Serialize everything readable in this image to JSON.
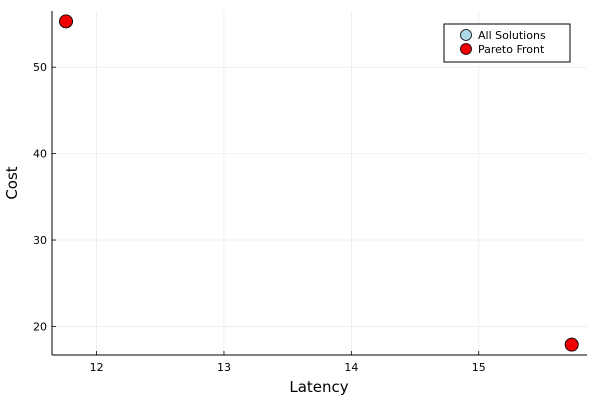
{
  "chart_data": {
    "type": "scatter",
    "title": "",
    "xlabel": "Latency",
    "ylabel": "Cost",
    "xlim": [
      11.65,
      15.85
    ],
    "ylim": [
      16.7,
      56.5
    ],
    "xticks": [
      12,
      13,
      14,
      15
    ],
    "yticks": [
      20,
      30,
      40,
      50
    ],
    "grid": true,
    "legend_position": "top-right",
    "series": [
      {
        "name": "All Solutions",
        "color": "#ADD8E6",
        "points": [
          {
            "x": 11.76,
            "y": 55.3
          },
          {
            "x": 15.73,
            "y": 17.9
          }
        ]
      },
      {
        "name": "Pareto Front",
        "color": "#EE0000",
        "points": [
          {
            "x": 11.76,
            "y": 55.3
          },
          {
            "x": 15.73,
            "y": 17.9
          }
        ]
      }
    ]
  }
}
